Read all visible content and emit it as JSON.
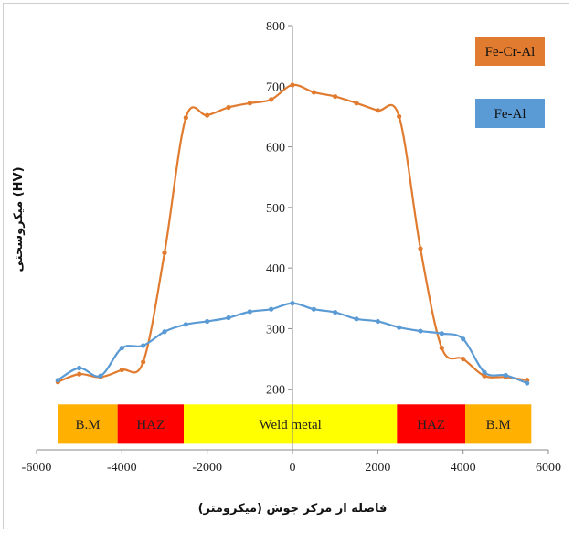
{
  "chart_data": {
    "type": "line",
    "title": "",
    "xlabel": "فاصله از مرکز جوش (میکرومتر)",
    "ylabel": "میکروسختی (HV)",
    "xlim": [
      -6000,
      6000
    ],
    "ylim": [
      100,
      800
    ],
    "xticks": [
      -6000,
      -4000,
      -2000,
      0,
      2000,
      4000,
      6000
    ],
    "yticks": [
      200,
      300,
      400,
      500,
      600,
      700,
      800
    ],
    "grid": false,
    "legend_position": "top-right",
    "series": [
      {
        "name": "Fe-Cr-Al",
        "color": "#e07b2f",
        "x": [
          -5500,
          -5000,
          -4500,
          -4000,
          -3500,
          -3000,
          -2500,
          -2000,
          -1500,
          -1000,
          -500,
          0,
          500,
          1000,
          1500,
          2000,
          2500,
          3000,
          3500,
          4000,
          4500,
          5000,
          5500
        ],
        "y": [
          212,
          225,
          220,
          232,
          245,
          425,
          648,
          652,
          665,
          672,
          678,
          702,
          690,
          683,
          672,
          660,
          650,
          432,
          268,
          250,
          222,
          220,
          215
        ]
      },
      {
        "name": "Fe-Al",
        "color": "#5b9bd5",
        "x": [
          -5500,
          -5000,
          -4500,
          -4000,
          -3500,
          -3000,
          -2500,
          -2000,
          -1500,
          -1000,
          -500,
          0,
          500,
          1000,
          1500,
          2000,
          2500,
          3000,
          3500,
          4000,
          4500,
          5000,
          5500
        ],
        "y": [
          215,
          235,
          222,
          268,
          272,
          295,
          307,
          312,
          318,
          328,
          332,
          342,
          332,
          327,
          316,
          312,
          302,
          296,
          292,
          283,
          228,
          223,
          210
        ]
      }
    ],
    "zones": [
      {
        "label": "B.M",
        "from": -5500,
        "to": -4100,
        "color": "#ffb000"
      },
      {
        "label": "HAZ",
        "from": -4100,
        "to": -2550,
        "color": "#ff0000"
      },
      {
        "label": "Weld metal",
        "from": -2550,
        "to": 2450,
        "color": "#ffff00"
      },
      {
        "label": "HAZ",
        "from": 2450,
        "to": 4050,
        "color": "#ff0000"
      },
      {
        "label": "B.M",
        "from": 4050,
        "to": 5600,
        "color": "#ffb000"
      }
    ],
    "zone_band_y": [
      110,
      175
    ]
  }
}
